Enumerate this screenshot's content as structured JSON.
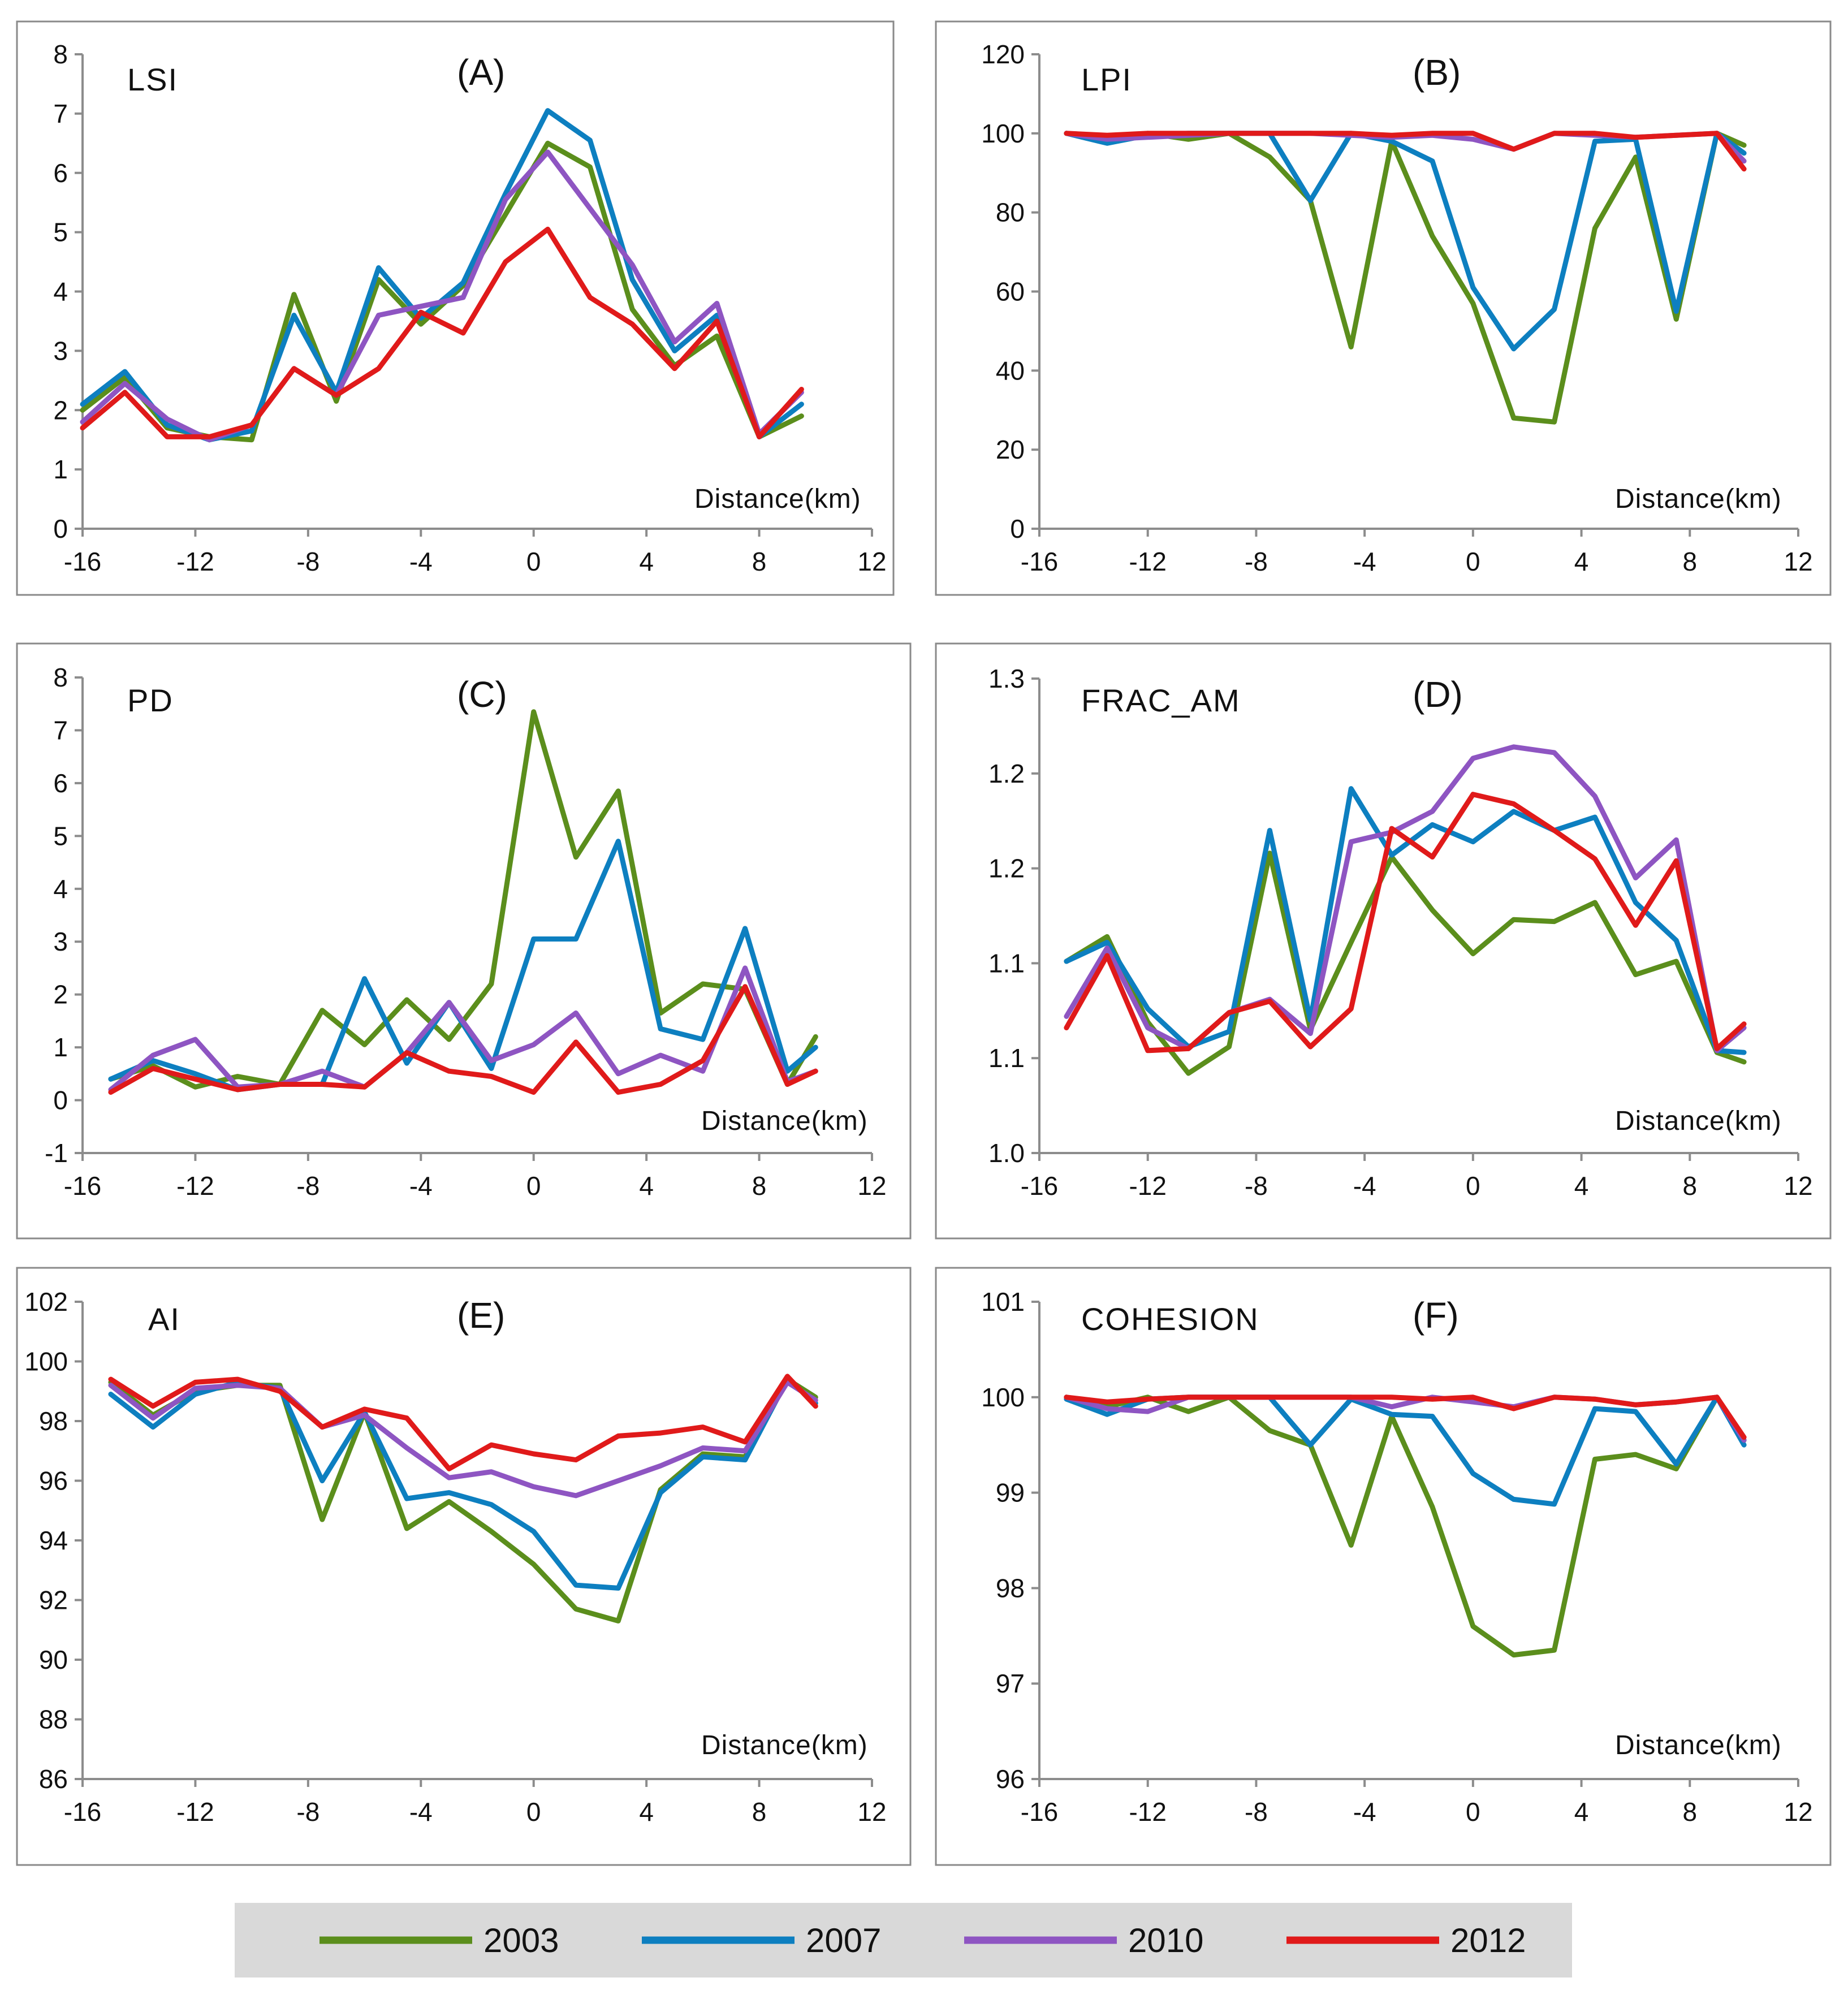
{
  "legend": [
    {
      "label": "2003",
      "color": "#5b8e1c"
    },
    {
      "label": "2007",
      "color": "#0d7fc0"
    },
    {
      "label": "2010",
      "color": "#8e55c2"
    },
    {
      "label": "2012",
      "color": "#e01a1a"
    }
  ],
  "chart_data": [
    {
      "type": "line",
      "id": "A",
      "panel_letter": "(A)",
      "title": "LSI",
      "xlabel": "Distance(km)",
      "xlim": [
        -16,
        12
      ],
      "ylim": [
        0,
        8
      ],
      "xticks": [
        "-16",
        "-12",
        "-8",
        "-4",
        "0",
        "4",
        "8",
        "12"
      ],
      "yticks": [
        "0",
        "1",
        "2",
        "3",
        "4",
        "5",
        "6",
        "7",
        "8"
      ],
      "x": [
        -16,
        -14.5,
        -13,
        -11.5,
        -10,
        -8.5,
        -7,
        -5.5,
        -4,
        -2.5,
        -1,
        0.5,
        2,
        3.5,
        5,
        6.5,
        8,
        9.5
      ],
      "series": [
        {
          "name": "2003",
          "values": [
            2.0,
            2.55,
            1.7,
            1.55,
            1.5,
            3.95,
            2.15,
            4.2,
            3.45,
            4.1,
            5.3,
            6.5,
            6.1,
            3.7,
            2.75,
            3.25,
            1.55,
            1.9
          ]
        },
        {
          "name": "2007",
          "values": [
            2.1,
            2.65,
            1.75,
            1.5,
            1.65,
            3.6,
            2.3,
            4.4,
            3.55,
            4.15,
            5.65,
            7.05,
            6.55,
            4.2,
            3.0,
            3.6,
            1.55,
            2.1
          ]
        },
        {
          "name": "2010",
          "values": [
            1.8,
            2.45,
            1.85,
            1.5,
            1.75,
            2.7,
            2.25,
            3.6,
            3.75,
            3.9,
            5.55,
            6.35,
            5.4,
            4.45,
            3.15,
            3.8,
            1.6,
            2.3
          ]
        },
        {
          "name": "2012",
          "values": [
            1.7,
            2.3,
            1.55,
            1.55,
            1.75,
            2.7,
            2.25,
            2.7,
            3.65,
            3.3,
            4.5,
            5.05,
            3.9,
            3.45,
            2.7,
            3.5,
            1.55,
            2.35
          ]
        }
      ]
    },
    {
      "type": "line",
      "id": "B",
      "panel_letter": "(B)",
      "title": "LPI",
      "xlabel": "Distance(km)",
      "xlim": [
        -16,
        12
      ],
      "ylim": [
        0,
        120
      ],
      "xticks": [
        "-16",
        "-12",
        "-8",
        "-4",
        "0",
        "4",
        "8",
        "12"
      ],
      "yticks": [
        "0",
        "20",
        "40",
        "60",
        "80",
        "100",
        "120"
      ],
      "x": [
        -15,
        -13.5,
        -12,
        -10.5,
        -9,
        -7.5,
        -6,
        -4.5,
        -3,
        -1.5,
        0,
        1.5,
        3,
        4.5,
        6,
        7.5,
        9,
        10
      ],
      "series": [
        {
          "name": "2003",
          "values": [
            100,
            99,
            100,
            98.5,
            100,
            94,
            83,
            46,
            98,
            74,
            57,
            28,
            27,
            76,
            94,
            53,
            100,
            97
          ]
        },
        {
          "name": "2007",
          "values": [
            100,
            97.5,
            99.5,
            100,
            100,
            100,
            83,
            100,
            98,
            93,
            61,
            45.5,
            55.5,
            98,
            98.5,
            55,
            100,
            95
          ]
        },
        {
          "name": "2010",
          "values": [
            100,
            98.5,
            99,
            99.5,
            100,
            100,
            100,
            99.5,
            99,
            99.5,
            98.5,
            96,
            100,
            99.5,
            99,
            99.5,
            100,
            93
          ]
        },
        {
          "name": "2012",
          "values": [
            100,
            99.5,
            100,
            100,
            100,
            100,
            100,
            100,
            99.5,
            100,
            100,
            96,
            100,
            100,
            99,
            99.5,
            100,
            91
          ]
        }
      ]
    },
    {
      "type": "line",
      "id": "C",
      "panel_letter": "(C)",
      "title": "PD",
      "xlabel": "Distance(km)",
      "xlim": [
        -16,
        12
      ],
      "ylim": [
        -1,
        8
      ],
      "xticks": [
        "-16",
        "-12",
        "-8",
        "-4",
        "0",
        "4",
        "8",
        "12"
      ],
      "yticks": [
        "-1",
        "0",
        "1",
        "2",
        "3",
        "4",
        "5",
        "6",
        "7",
        "8"
      ],
      "x": [
        -15,
        -13.5,
        -12,
        -10.5,
        -9,
        -7.5,
        -6,
        -4.5,
        -3,
        -1.5,
        0,
        1.5,
        3,
        4.5,
        6,
        7.5,
        9,
        10
      ],
      "series": [
        {
          "name": "2003",
          "values": [
            0.4,
            0.65,
            0.25,
            0.45,
            0.3,
            1.7,
            1.05,
            1.9,
            1.15,
            2.2,
            7.35,
            4.6,
            5.85,
            1.65,
            2.2,
            2.1,
            0.3,
            1.2
          ]
        },
        {
          "name": "2007",
          "values": [
            0.4,
            0.75,
            0.5,
            0.2,
            0.3,
            0.3,
            2.3,
            0.7,
            1.85,
            0.6,
            3.05,
            3.05,
            4.9,
            1.35,
            1.15,
            3.25,
            0.55,
            1.0
          ]
        },
        {
          "name": "2010",
          "values": [
            0.2,
            0.85,
            1.15,
            0.25,
            0.3,
            0.55,
            0.25,
            0.9,
            1.85,
            0.75,
            1.05,
            1.65,
            0.5,
            0.85,
            0.55,
            2.5,
            0.35,
            0.55
          ]
        },
        {
          "name": "2012",
          "values": [
            0.15,
            0.6,
            0.4,
            0.2,
            0.3,
            0.3,
            0.25,
            0.9,
            0.55,
            0.45,
            0.15,
            1.1,
            0.15,
            0.3,
            0.75,
            2.15,
            0.3,
            0.55
          ]
        }
      ]
    },
    {
      "type": "line",
      "id": "D",
      "panel_letter": "(D)",
      "title": "FRAC_AM",
      "xlabel": "Distance(km)",
      "xlim": [
        -16,
        12
      ],
      "ylim": [
        1.0,
        1.25
      ],
      "xticks": [
        "-16",
        "-12",
        "-8",
        "-4",
        "0",
        "4",
        "8",
        "12"
      ],
      "yticks": [
        "1.0",
        "1.1",
        "1.1",
        "1.2",
        "1.2",
        "1.3"
      ],
      "x": [
        -15,
        -13.5,
        -12,
        -10.5,
        -9,
        -7.5,
        -6,
        -4.5,
        -3,
        -1.5,
        0,
        1.5,
        3,
        4.5,
        6,
        7.5,
        9,
        10
      ],
      "series": [
        {
          "name": "2003",
          "values": [
            1.101,
            1.114,
            1.069,
            1.042,
            1.056,
            1.158,
            1.065,
            1.111,
            1.156,
            1.128,
            1.105,
            1.123,
            1.122,
            1.132,
            1.094,
            1.101,
            1.053,
            1.048
          ]
        },
        {
          "name": "2007",
          "values": [
            1.101,
            1.111,
            1.076,
            1.056,
            1.064,
            1.17,
            1.07,
            1.192,
            1.157,
            1.173,
            1.164,
            1.18,
            1.17,
            1.177,
            1.132,
            1.112,
            1.054,
            1.053
          ]
        },
        {
          "name": "2010",
          "values": [
            1.072,
            1.108,
            1.066,
            1.055,
            1.074,
            1.081,
            1.063,
            1.164,
            1.169,
            1.18,
            1.208,
            1.214,
            1.211,
            1.188,
            1.145,
            1.165,
            1.054,
            1.066
          ]
        },
        {
          "name": "2012",
          "values": [
            1.066,
            1.104,
            1.054,
            1.055,
            1.074,
            1.08,
            1.056,
            1.076,
            1.171,
            1.156,
            1.189,
            1.184,
            1.17,
            1.155,
            1.12,
            1.154,
            1.055,
            1.068
          ]
        }
      ]
    },
    {
      "type": "line",
      "id": "E",
      "panel_letter": "(E)",
      "title": "AI",
      "xlabel": "Distance(km)",
      "xlim": [
        -16,
        12
      ],
      "ylim": [
        86,
        102
      ],
      "xticks": [
        "-16",
        "-12",
        "-8",
        "-4",
        "0",
        "4",
        "8",
        "12"
      ],
      "yticks": [
        "86",
        "88",
        "90",
        "92",
        "94",
        "96",
        "98",
        "100",
        "102"
      ],
      "x": [
        -15,
        -13.5,
        -12,
        -10.5,
        -9,
        -7.5,
        -6,
        -4.5,
        -3,
        -1.5,
        0,
        1.5,
        3,
        4.5,
        6,
        7.5,
        9,
        10
      ],
      "series": [
        {
          "name": "2003",
          "values": [
            99.3,
            98.2,
            99.0,
            99.2,
            99.2,
            94.7,
            98.3,
            94.4,
            95.3,
            94.3,
            93.2,
            91.7,
            91.3,
            95.7,
            96.9,
            96.8,
            99.4,
            98.8
          ]
        },
        {
          "name": "2007",
          "values": [
            98.9,
            97.8,
            98.9,
            99.3,
            99.1,
            96.0,
            98.3,
            95.4,
            95.6,
            95.2,
            94.3,
            92.5,
            92.4,
            95.6,
            96.8,
            96.7,
            99.4,
            98.6
          ]
        },
        {
          "name": "2010",
          "values": [
            99.2,
            98.1,
            99.1,
            99.2,
            99.1,
            97.8,
            98.2,
            97.1,
            96.1,
            96.3,
            95.8,
            95.5,
            96.0,
            96.5,
            97.1,
            97.0,
            99.3,
            98.7
          ]
        },
        {
          "name": "2012",
          "values": [
            99.4,
            98.5,
            99.3,
            99.4,
            99.0,
            97.8,
            98.4,
            98.1,
            96.4,
            97.2,
            96.9,
            96.7,
            97.5,
            97.6,
            97.8,
            97.3,
            99.5,
            98.5
          ]
        }
      ]
    },
    {
      "type": "line",
      "id": "F",
      "panel_letter": "(F)",
      "title": "COHESION",
      "xlabel": "Distance(km)",
      "xlim": [
        -16,
        12
      ],
      "ylim": [
        96,
        101
      ],
      "xticks": [
        "-16",
        "-12",
        "-8",
        "-4",
        "0",
        "4",
        "8",
        "12"
      ],
      "yticks": [
        "96",
        "97",
        "98",
        "99",
        "100",
        "101"
      ],
      "x": [
        -15,
        -13.5,
        -12,
        -10.5,
        -9,
        -7.5,
        -6,
        -4.5,
        -3,
        -1.5,
        0,
        1.5,
        3,
        4.5,
        6,
        7.5,
        9,
        10
      ],
      "series": [
        {
          "name": "2003",
          "values": [
            100,
            99.9,
            100,
            99.85,
            100,
            99.65,
            99.5,
            98.45,
            99.8,
            98.85,
            97.6,
            97.3,
            97.35,
            99.35,
            99.4,
            99.25,
            100,
            99.55
          ]
        },
        {
          "name": "2007",
          "values": [
            99.98,
            99.82,
            99.98,
            100,
            100,
            100,
            99.5,
            99.98,
            99.82,
            99.8,
            99.2,
            98.93,
            98.88,
            99.88,
            99.85,
            99.3,
            100,
            99.5
          ]
        },
        {
          "name": "2010",
          "values": [
            100,
            99.88,
            99.85,
            100,
            100,
            100,
            100,
            100,
            99.9,
            100,
            99.95,
            99.9,
            100,
            99.98,
            99.92,
            99.95,
            100,
            99.55
          ]
        },
        {
          "name": "2012",
          "values": [
            100,
            99.95,
            99.98,
            100,
            100,
            100,
            100,
            100,
            100,
            99.98,
            100,
            99.88,
            100,
            99.98,
            99.92,
            99.95,
            100,
            99.58
          ]
        }
      ]
    }
  ]
}
